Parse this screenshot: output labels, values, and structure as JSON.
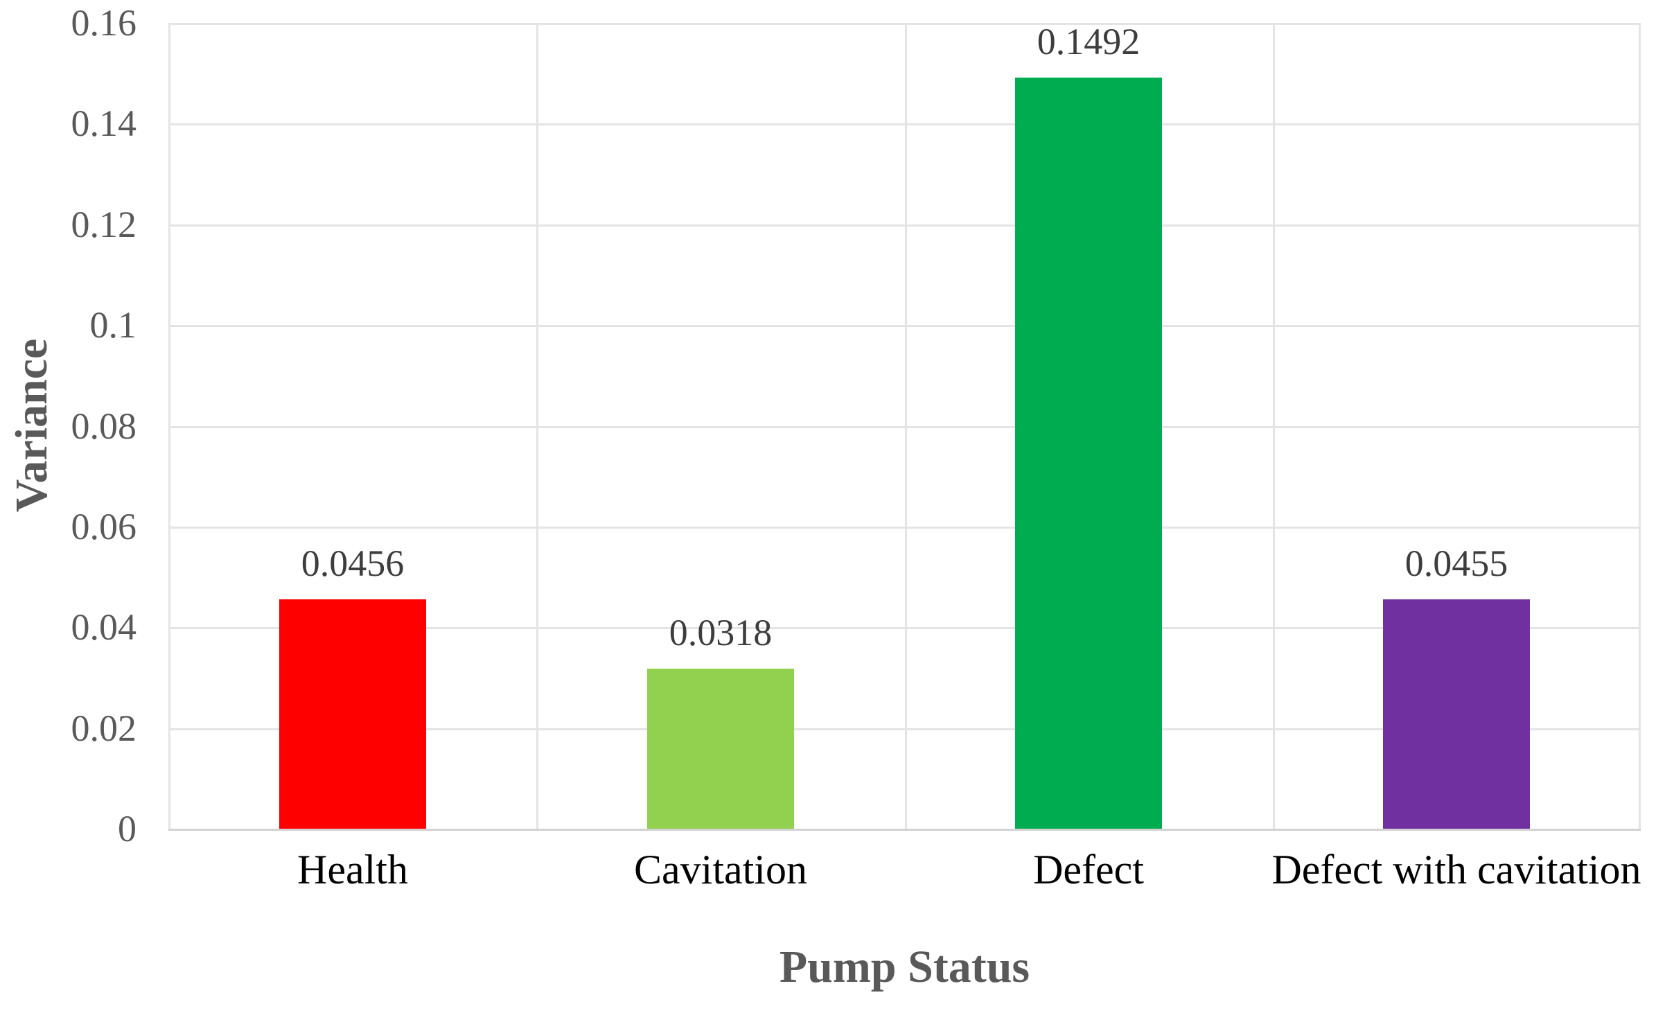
{
  "chart_data": {
    "type": "bar",
    "categories": [
      "Health",
      "Cavitation",
      "Defect",
      "Defect with cavitation"
    ],
    "values": [
      0.0456,
      0.0318,
      0.1492,
      0.0455
    ],
    "data_labels": [
      "0.0456",
      "0.0318",
      "0.1492",
      "0.0455"
    ],
    "bar_colors": [
      "#FF0000",
      "#92D050",
      "#00AC50",
      "#7030A0"
    ],
    "title": "",
    "xlabel": "Pump Status",
    "ylabel": "Variance",
    "ylim": [
      0,
      0.16
    ],
    "yticks": [
      0,
      0.02,
      0.04,
      0.06,
      0.08,
      0.1,
      0.12,
      0.14,
      0.16
    ],
    "ytick_labels": [
      "0",
      "0.02",
      "0.04",
      "0.06",
      "0.08",
      "0.1",
      "0.12",
      "0.14",
      "0.16"
    ],
    "grid": "horizontal gridlines at every tick plus vertical category-boundary gridlines",
    "legend": "none",
    "colors": {
      "gridline": "#e4e4e4",
      "axis_line": "#d2d2d2",
      "tick_label": "#595959",
      "axis_title": "#595959",
      "category_label": "#000000",
      "value_label": "#3d3d3d",
      "background": "#ffffff"
    }
  }
}
